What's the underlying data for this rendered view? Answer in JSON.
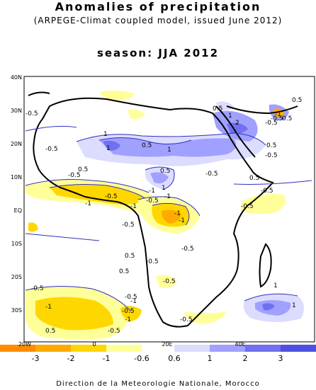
{
  "title": "Anomalies of precipitation",
  "subtitle": "(ARPEGE-Climat coupled model, issued June 2012)",
  "season_label": "season: JJA 2012",
  "footer": "Direction de la Meteorologie Nationale, Morocco",
  "map": {
    "lat_ticks": [
      "40N",
      "30N",
      "20N",
      "10N",
      "EQ",
      "10S",
      "20S",
      "30S"
    ],
    "lon_ticks": [
      "20W",
      "0",
      "20E",
      "40E"
    ],
    "contour_labels": [
      "-0.5",
      "-0.5",
      "-0.5",
      "-0.5",
      "-1",
      "-1",
      "-1",
      "-1",
      "-0.5",
      "0.5",
      "0.5",
      "0.5",
      "1",
      "1",
      "2",
      "-1",
      "1",
      "0.5",
      "0.5",
      "1",
      "0.5",
      "0.5",
      "0.5",
      "0.5",
      "0.5",
      "-0.5",
      "-0.5",
      "-0.5",
      "-0.5",
      "-0.5",
      "-0.5",
      "-0.5",
      "-0.5",
      "-0.5",
      "-0.5",
      "-0.5",
      "-1",
      "-1",
      "-1",
      "-1",
      "-1",
      "-0.5",
      "-0.5",
      "-0.5",
      "-0.5",
      "1",
      "1",
      "1",
      "0.5"
    ]
  },
  "colorbar": {
    "labels": [
      "-3",
      "-2",
      "-1",
      "-0.6",
      "0.6",
      "1",
      "2",
      "3"
    ],
    "colors": [
      "#ff8c00",
      "#ffaa00",
      "#ffd700",
      "#ffff99",
      "#ffffff",
      "#dcdcff",
      "#a0a0ff",
      "#7070f0",
      "#5050e0"
    ]
  }
}
